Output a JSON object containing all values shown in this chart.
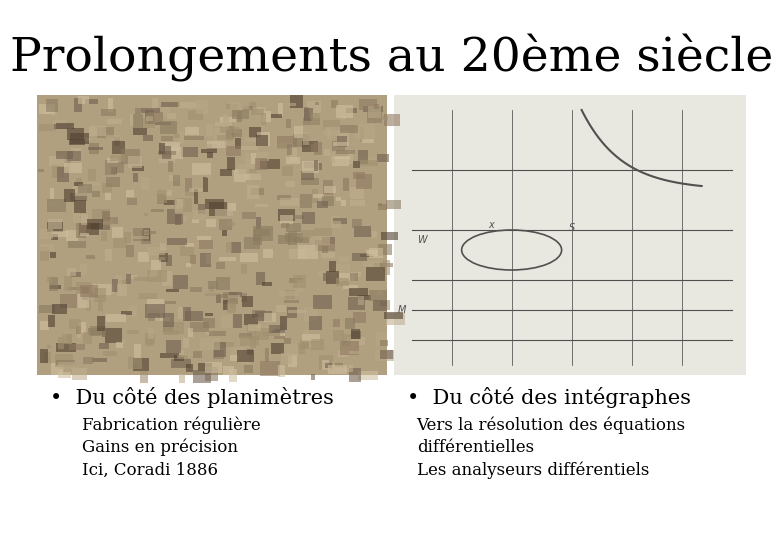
{
  "title": "Prolongements au 20ème siècle",
  "background_color": "#ffffff",
  "title_fontsize": 34,
  "title_font": "serif",
  "bullet_left": "•  Du côté des planimètres",
  "bullet_right": "•  Du côté des intégraphes",
  "bullet_fontsize": 15,
  "sub_left_1": "Fabrication régulière",
  "sub_left_2": "Gains en précision",
  "sub_left_3": "Ici, Coradi 1886",
  "sub_right_1": "Vers la résolution des équations",
  "sub_right_2": "différentielles",
  "sub_right_3": "Les analyseurs différentiels",
  "sub_fontsize": 12,
  "left_img_color": "#b0a080",
  "right_img_color": "#e8e8e0"
}
